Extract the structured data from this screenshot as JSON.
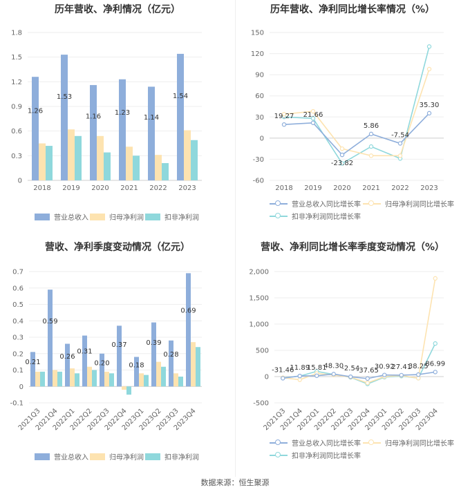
{
  "source_text": "数据来源：恒生聚源",
  "legend_bar": [
    "营业总收入",
    "归母净利润",
    "扣非净利润"
  ],
  "legend_line": [
    "营业总收入同比增长率",
    "归母净利润同比增长率",
    "扣非净利润同比增长率"
  ],
  "colors": {
    "series1": "#8eaedb",
    "series2": "#fde3b0",
    "series3": "#8fd8dc"
  },
  "chart_data": [
    {
      "type": "bar",
      "title": "历年营收、净利情况（亿元）",
      "categories": [
        "2018",
        "2019",
        "2020",
        "2021",
        "2022",
        "2023"
      ],
      "ylim": [
        0,
        1.8
      ],
      "yticks": [
        0,
        0.3,
        0.6,
        0.9,
        1.2,
        1.5,
        1.8
      ],
      "tick_labels": [
        "0",
        "0.3",
        "0.6",
        "0.9",
        "1.2",
        "1.5",
        "1.8"
      ],
      "series": [
        {
          "name": "营业总收入",
          "values": [
            1.26,
            1.53,
            1.16,
            1.23,
            1.14,
            1.54
          ]
        },
        {
          "name": "归母净利润",
          "values": [
            0.45,
            0.62,
            0.54,
            0.41,
            0.31,
            0.61
          ]
        },
        {
          "name": "扣非净利润",
          "values": [
            0.42,
            0.54,
            0.34,
            0.3,
            0.21,
            0.49
          ]
        }
      ],
      "data_labels": [
        "1.26",
        "1.53",
        "1.16",
        "1.23",
        "1.14",
        "1.54"
      ],
      "grid": true,
      "legend": "bottom"
    },
    {
      "type": "line",
      "title": "历年营收、净利同比增长率情况（%）",
      "categories": [
        "2018",
        "2019",
        "2020",
        "2021",
        "2022",
        "2023"
      ],
      "ylim": [
        -60,
        150
      ],
      "yticks": [
        -60,
        -30,
        0,
        30,
        60,
        90,
        120,
        150
      ],
      "tick_labels": [
        "-60",
        "-30",
        "0",
        "30",
        "60",
        "90",
        "120",
        "150"
      ],
      "series": [
        {
          "name": "营业总收入同比增长率",
          "values": [
            19.27,
            21.66,
            -23.82,
            5.86,
            -7.54,
            35.3
          ]
        },
        {
          "name": "归母净利润同比增长率",
          "values": [
            34,
            38,
            -15,
            -25,
            -25,
            98
          ]
        },
        {
          "name": "扣非净利润同比增长率",
          "values": [
            30,
            28,
            -36,
            -12,
            -29,
            130
          ]
        }
      ],
      "data_labels": [
        "19.27",
        "21.66",
        "-23.82",
        "5.86",
        "-7.54",
        "35.30"
      ],
      "grid": true,
      "legend": "bottom"
    },
    {
      "type": "bar",
      "title": "营收、净利季度变动情况（亿元）",
      "categories": [
        "2021Q3",
        "2021Q4",
        "2022Q1",
        "2022Q2",
        "2022Q3",
        "2022Q4",
        "2023Q1",
        "2023Q2",
        "2023Q3",
        "2023Q4"
      ],
      "ylim": [
        -0.1,
        0.7
      ],
      "yticks": [
        -0.1,
        0,
        0.1,
        0.2,
        0.3,
        0.4,
        0.5,
        0.6,
        0.7
      ],
      "tick_labels": [
        "-0.1",
        "0",
        "0.1",
        "0.2",
        "0.3",
        "0.4",
        "0.5",
        "0.6",
        "0.7"
      ],
      "series": [
        {
          "name": "营业总收入",
          "values": [
            0.21,
            0.59,
            0.26,
            0.31,
            0.2,
            0.37,
            0.18,
            0.39,
            0.28,
            0.69
          ]
        },
        {
          "name": "归母净利润",
          "values": [
            0.09,
            0.1,
            0.11,
            0.12,
            0.09,
            -0.02,
            0.08,
            0.15,
            0.08,
            0.27
          ]
        },
        {
          "name": "扣非净利润",
          "values": [
            0.09,
            0.09,
            0.08,
            0.1,
            0.08,
            -0.05,
            0.07,
            0.12,
            0.06,
            0.24
          ]
        }
      ],
      "data_labels": [
        "0.21",
        "0.59",
        "0.26",
        "0.31",
        "0.20",
        "0.37",
        "0.18",
        "0.39",
        "0.28",
        "0.69"
      ],
      "grid": true,
      "legend": "bottom"
    },
    {
      "type": "line",
      "title": "营收、净利同比增长率季度变动情况（%）",
      "categories": [
        "2021Q3",
        "2021Q4",
        "2022Q1",
        "2022Q2",
        "2022Q3",
        "2022Q4",
        "2023Q1",
        "2023Q2",
        "2023Q3",
        "2023Q4"
      ],
      "ylim": [
        -500,
        2000
      ],
      "yticks": [
        -500,
        0,
        500,
        1000,
        1500,
        2000
      ],
      "tick_labels": [
        "-500",
        "0",
        "500",
        "1,000",
        "1,500",
        "2,000"
      ],
      "series": [
        {
          "name": "营业总收入同比增长率",
          "values": [
            -31.46,
            11.89,
            15.81,
            48.3,
            -2.54,
            -37.65,
            30.92,
            27.41,
            38.25,
            86.99
          ]
        },
        {
          "name": "归母净利润同比增长率",
          "values": [
            -20,
            -60,
            60,
            30,
            -10,
            -120,
            0,
            20,
            -30,
            1870
          ]
        },
        {
          "name": "扣非净利润同比增长率",
          "values": [
            -25,
            10,
            100,
            40,
            -15,
            -140,
            -10,
            10,
            -30,
            630
          ]
        }
      ],
      "data_labels": [
        "-31.46",
        "11.89",
        "15.81",
        "48.30",
        "-2.54",
        "-37.65",
        "30.92",
        "27.41",
        "38.25",
        "86.99"
      ],
      "grid": true,
      "legend": "bottom"
    }
  ]
}
